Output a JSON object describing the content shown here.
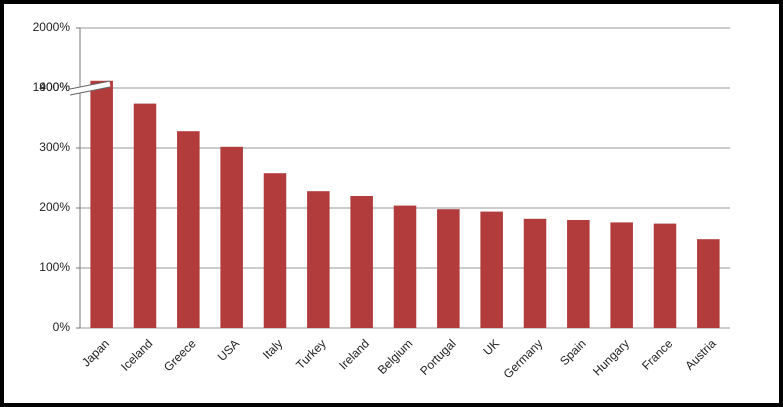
{
  "chart_data": {
    "type": "bar",
    "categories": [
      "Japan",
      "Iceland",
      "Greece",
      "USA",
      "Italy",
      "Turkey",
      "Ireland",
      "Belgium",
      "Portugal",
      "UK",
      "Germany",
      "Spain",
      "Hungary",
      "France",
      "Austria"
    ],
    "values": [
      1912,
      374,
      328,
      302,
      258,
      228,
      220,
      204,
      198,
      194,
      182,
      180,
      176,
      174,
      148
    ],
    "color": "#b23b3b",
    "ylim": [
      0,
      2000
    ],
    "axis_break": [
      400,
      1900
    ],
    "yticks": [
      {
        "value": 0,
        "label": "0%"
      },
      {
        "value": 100,
        "label": "100%"
      },
      {
        "value": 200,
        "label": "200%"
      },
      {
        "value": 300,
        "label": "300%"
      },
      {
        "value": 400,
        "label": "400%"
      },
      {
        "value": 1900,
        "label": "1900%"
      },
      {
        "value": 2000,
        "label": "2000%"
      }
    ],
    "grid": true
  }
}
